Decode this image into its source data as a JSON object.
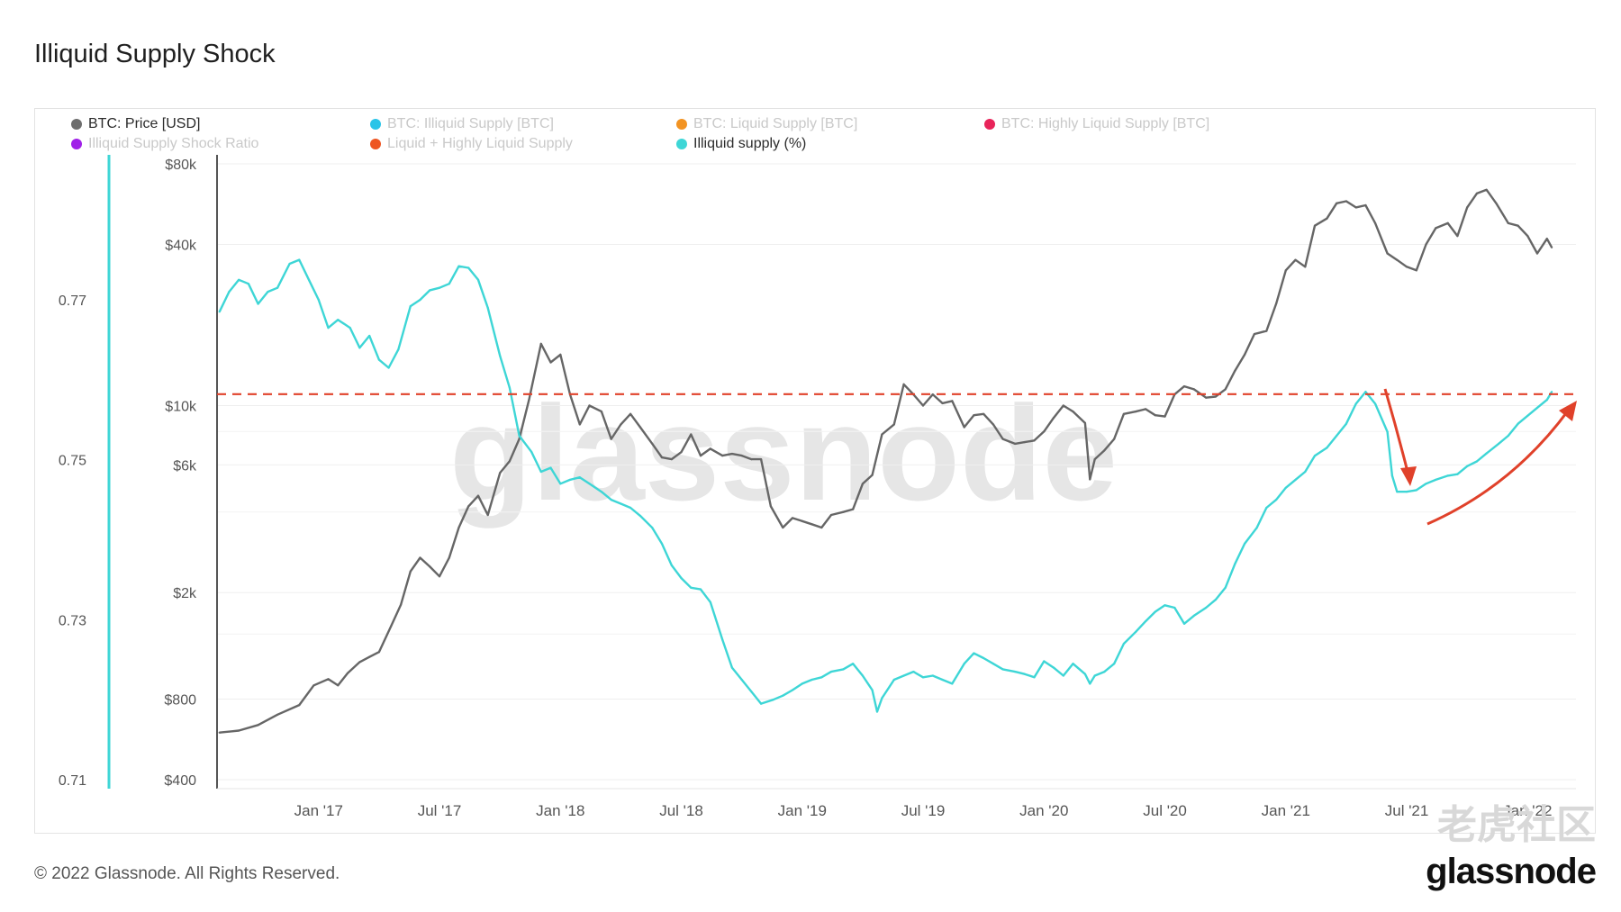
{
  "page": {
    "title": "Illiquid Supply Shock",
    "copyright": "© 2022 Glassnode. All Rights Reserved.",
    "brand": "glassnode",
    "watermark": "glassnode",
    "cn_watermark": "老虎社区"
  },
  "legend": [
    {
      "label": "BTC: Price [USD]",
      "color": "#6e6e6e",
      "active": true
    },
    {
      "label": "BTC: Illiquid Supply [BTC]",
      "color": "#29c4e8",
      "active": false
    },
    {
      "label": "BTC: Liquid Supply [BTC]",
      "color": "#f29322",
      "active": false
    },
    {
      "label": "BTC: Highly Liquid Supply [BTC]",
      "color": "#e8245a",
      "active": false
    },
    {
      "label": "Illiquid Supply Shock Ratio",
      "color": "#a020e8",
      "active": false
    },
    {
      "label": "Liquid + Highly Liquid Supply",
      "color": "#ee5522",
      "active": false
    },
    {
      "label": "Illiquid supply (%)",
      "color": "#3ed6d6",
      "active": true
    }
  ],
  "chart_data": {
    "type": "line",
    "title": "Illiquid Supply Shock",
    "x_ticks": [
      "Jan '17",
      "Jul '17",
      "Jan '18",
      "Jul '18",
      "Jan '19",
      "Jul '19",
      "Jan '20",
      "Jul '20",
      "Jan '21",
      "Jul '21",
      "Jan '22"
    ],
    "y_left_ticks": [
      "$80k",
      "$40k",
      "$10k",
      "$6k",
      "$2k",
      "$800",
      "$400"
    ],
    "y_left_scale": "log",
    "y_left_range": [
      400,
      80000
    ],
    "y_right_ticks": [
      "0.77",
      "0.75",
      "0.73",
      "0.71"
    ],
    "y_right_range": [
      0.71,
      0.787
    ],
    "x_range": [
      2016.58,
      2022.2
    ],
    "series": [
      {
        "name": "BTC: Price [USD]",
        "color": "#666666",
        "axis": "left",
        "points": [
          [
            2016.59,
            600
          ],
          [
            2016.67,
            610
          ],
          [
            2016.75,
            640
          ],
          [
            2016.83,
            700
          ],
          [
            2016.92,
            760
          ],
          [
            2016.98,
            900
          ],
          [
            2017.04,
            950
          ],
          [
            2017.08,
            900
          ],
          [
            2017.12,
            1000
          ],
          [
            2017.17,
            1100
          ],
          [
            2017.21,
            1150
          ],
          [
            2017.25,
            1200
          ],
          [
            2017.3,
            1500
          ],
          [
            2017.34,
            1800
          ],
          [
            2017.38,
            2400
          ],
          [
            2017.42,
            2700
          ],
          [
            2017.46,
            2500
          ],
          [
            2017.5,
            2300
          ],
          [
            2017.54,
            2700
          ],
          [
            2017.58,
            3500
          ],
          [
            2017.62,
            4200
          ],
          [
            2017.66,
            4600
          ],
          [
            2017.7,
            3900
          ],
          [
            2017.75,
            5600
          ],
          [
            2017.79,
            6200
          ],
          [
            2017.83,
            7500
          ],
          [
            2017.87,
            10500
          ],
          [
            2017.92,
            17000
          ],
          [
            2017.96,
            14500
          ],
          [
            2018.0,
            15500
          ],
          [
            2018.04,
            11000
          ],
          [
            2018.08,
            8500
          ],
          [
            2018.12,
            10000
          ],
          [
            2018.17,
            9500
          ],
          [
            2018.21,
            7500
          ],
          [
            2018.25,
            8500
          ],
          [
            2018.29,
            9300
          ],
          [
            2018.33,
            8300
          ],
          [
            2018.38,
            7200
          ],
          [
            2018.42,
            6400
          ],
          [
            2018.46,
            6300
          ],
          [
            2018.5,
            6700
          ],
          [
            2018.54,
            7800
          ],
          [
            2018.58,
            6500
          ],
          [
            2018.62,
            6900
          ],
          [
            2018.67,
            6500
          ],
          [
            2018.71,
            6600
          ],
          [
            2018.75,
            6500
          ],
          [
            2018.79,
            6300
          ],
          [
            2018.83,
            6300
          ],
          [
            2018.87,
            4200
          ],
          [
            2018.92,
            3500
          ],
          [
            2018.96,
            3800
          ],
          [
            2019.0,
            3700
          ],
          [
            2019.04,
            3600
          ],
          [
            2019.08,
            3500
          ],
          [
            2019.12,
            3900
          ],
          [
            2019.17,
            4000
          ],
          [
            2019.21,
            4100
          ],
          [
            2019.25,
            5100
          ],
          [
            2019.29,
            5500
          ],
          [
            2019.33,
            7800
          ],
          [
            2019.38,
            8500
          ],
          [
            2019.42,
            12000
          ],
          [
            2019.46,
            11000
          ],
          [
            2019.5,
            10000
          ],
          [
            2019.54,
            11000
          ],
          [
            2019.58,
            10200
          ],
          [
            2019.62,
            10400
          ],
          [
            2019.67,
            8300
          ],
          [
            2019.71,
            9200
          ],
          [
            2019.75,
            9300
          ],
          [
            2019.79,
            8500
          ],
          [
            2019.83,
            7500
          ],
          [
            2019.88,
            7200
          ],
          [
            2019.92,
            7300
          ],
          [
            2019.96,
            7400
          ],
          [
            2020.0,
            8000
          ],
          [
            2020.04,
            9000
          ],
          [
            2020.08,
            10000
          ],
          [
            2020.12,
            9500
          ],
          [
            2020.17,
            8600
          ],
          [
            2020.19,
            5300
          ],
          [
            2020.21,
            6300
          ],
          [
            2020.25,
            6800
          ],
          [
            2020.29,
            7500
          ],
          [
            2020.33,
            9300
          ],
          [
            2020.38,
            9500
          ],
          [
            2020.42,
            9700
          ],
          [
            2020.46,
            9200
          ],
          [
            2020.5,
            9100
          ],
          [
            2020.54,
            11000
          ],
          [
            2020.58,
            11800
          ],
          [
            2020.62,
            11500
          ],
          [
            2020.67,
            10700
          ],
          [
            2020.71,
            10800
          ],
          [
            2020.75,
            11500
          ],
          [
            2020.79,
            13500
          ],
          [
            2020.83,
            15500
          ],
          [
            2020.87,
            18500
          ],
          [
            2020.92,
            19000
          ],
          [
            2020.96,
            24000
          ],
          [
            2021.0,
            32000
          ],
          [
            2021.04,
            35000
          ],
          [
            2021.08,
            33000
          ],
          [
            2021.12,
            47000
          ],
          [
            2021.17,
            50000
          ],
          [
            2021.21,
            57000
          ],
          [
            2021.25,
            58000
          ],
          [
            2021.29,
            55000
          ],
          [
            2021.33,
            56000
          ],
          [
            2021.37,
            48000
          ],
          [
            2021.42,
            37000
          ],
          [
            2021.46,
            35000
          ],
          [
            2021.5,
            33000
          ],
          [
            2021.54,
            32000
          ],
          [
            2021.58,
            40000
          ],
          [
            2021.62,
            46000
          ],
          [
            2021.67,
            48000
          ],
          [
            2021.71,
            43000
          ],
          [
            2021.75,
            55000
          ],
          [
            2021.79,
            62000
          ],
          [
            2021.83,
            64000
          ],
          [
            2021.87,
            57000
          ],
          [
            2021.92,
            48000
          ],
          [
            2021.96,
            47000
          ],
          [
            2022.0,
            43000
          ],
          [
            2022.04,
            37000
          ],
          [
            2022.08,
            42000
          ],
          [
            2022.1,
            39000
          ]
        ]
      },
      {
        "name": "Illiquid supply (%)",
        "color": "#3ed6d6",
        "axis": "right",
        "points": [
          [
            2016.59,
            0.7685
          ],
          [
            2016.63,
            0.771
          ],
          [
            2016.67,
            0.7725
          ],
          [
            2016.71,
            0.772
          ],
          [
            2016.75,
            0.7695
          ],
          [
            2016.79,
            0.771
          ],
          [
            2016.83,
            0.7715
          ],
          [
            2016.88,
            0.7745
          ],
          [
            2016.92,
            0.775
          ],
          [
            2016.96,
            0.7725
          ],
          [
            2017.0,
            0.77
          ],
          [
            2017.04,
            0.7665
          ],
          [
            2017.08,
            0.7675
          ],
          [
            2017.13,
            0.7665
          ],
          [
            2017.17,
            0.764
          ],
          [
            2017.21,
            0.7655
          ],
          [
            2017.25,
            0.7625
          ],
          [
            2017.29,
            0.7615
          ],
          [
            2017.33,
            0.7638
          ],
          [
            2017.38,
            0.7692
          ],
          [
            2017.42,
            0.77
          ],
          [
            2017.46,
            0.7712
          ],
          [
            2017.5,
            0.7715
          ],
          [
            2017.54,
            0.772
          ],
          [
            2017.58,
            0.7742
          ],
          [
            2017.62,
            0.774
          ],
          [
            2017.66,
            0.7725
          ],
          [
            2017.7,
            0.769
          ],
          [
            2017.75,
            0.763
          ],
          [
            2017.79,
            0.759
          ],
          [
            2017.83,
            0.753
          ],
          [
            2017.88,
            0.751
          ],
          [
            2017.92,
            0.7485
          ],
          [
            2017.96,
            0.749
          ],
          [
            2018.0,
            0.747
          ],
          [
            2018.04,
            0.7475
          ],
          [
            2018.08,
            0.7478
          ],
          [
            2018.12,
            0.747
          ],
          [
            2018.17,
            0.746
          ],
          [
            2018.21,
            0.745
          ],
          [
            2018.25,
            0.7445
          ],
          [
            2018.29,
            0.744
          ],
          [
            2018.33,
            0.743
          ],
          [
            2018.38,
            0.7415
          ],
          [
            2018.42,
            0.7395
          ],
          [
            2018.46,
            0.7368
          ],
          [
            2018.5,
            0.7352
          ],
          [
            2018.54,
            0.734
          ],
          [
            2018.58,
            0.7338
          ],
          [
            2018.62,
            0.7322
          ],
          [
            2018.67,
            0.7275
          ],
          [
            2018.71,
            0.724
          ],
          [
            2018.75,
            0.7225
          ],
          [
            2018.79,
            0.721
          ],
          [
            2018.83,
            0.7195
          ],
          [
            2018.88,
            0.72
          ],
          [
            2018.92,
            0.7205
          ],
          [
            2018.96,
            0.7212
          ],
          [
            2019.0,
            0.722
          ],
          [
            2019.04,
            0.7225
          ],
          [
            2019.08,
            0.7228
          ],
          [
            2019.12,
            0.7235
          ],
          [
            2019.17,
            0.7238
          ],
          [
            2019.21,
            0.7245
          ],
          [
            2019.25,
            0.723
          ],
          [
            2019.29,
            0.7212
          ],
          [
            2019.31,
            0.7185
          ],
          [
            2019.33,
            0.7202
          ],
          [
            2019.38,
            0.7225
          ],
          [
            2019.42,
            0.723
          ],
          [
            2019.46,
            0.7235
          ],
          [
            2019.5,
            0.7228
          ],
          [
            2019.54,
            0.723
          ],
          [
            2019.58,
            0.7225
          ],
          [
            2019.62,
            0.722
          ],
          [
            2019.67,
            0.7245
          ],
          [
            2019.71,
            0.7258
          ],
          [
            2019.75,
            0.7252
          ],
          [
            2019.79,
            0.7245
          ],
          [
            2019.83,
            0.7238
          ],
          [
            2019.88,
            0.7235
          ],
          [
            2019.92,
            0.7232
          ],
          [
            2019.96,
            0.7228
          ],
          [
            2020.0,
            0.7248
          ],
          [
            2020.04,
            0.724
          ],
          [
            2020.08,
            0.723
          ],
          [
            2020.12,
            0.7245
          ],
          [
            2020.17,
            0.7232
          ],
          [
            2020.19,
            0.722
          ],
          [
            2020.21,
            0.723
          ],
          [
            2020.25,
            0.7235
          ],
          [
            2020.29,
            0.7245
          ],
          [
            2020.33,
            0.727
          ],
          [
            2020.38,
            0.7285
          ],
          [
            2020.42,
            0.7298
          ],
          [
            2020.46,
            0.731
          ],
          [
            2020.5,
            0.7318
          ],
          [
            2020.54,
            0.7315
          ],
          [
            2020.58,
            0.7295
          ],
          [
            2020.62,
            0.7305
          ],
          [
            2020.67,
            0.7315
          ],
          [
            2020.71,
            0.7325
          ],
          [
            2020.75,
            0.734
          ],
          [
            2020.79,
            0.737
          ],
          [
            2020.83,
            0.7395
          ],
          [
            2020.88,
            0.7415
          ],
          [
            2020.92,
            0.744
          ],
          [
            2020.96,
            0.745
          ],
          [
            2021.0,
            0.7465
          ],
          [
            2021.04,
            0.7475
          ],
          [
            2021.08,
            0.7485
          ],
          [
            2021.12,
            0.7505
          ],
          [
            2021.17,
            0.7515
          ],
          [
            2021.21,
            0.753
          ],
          [
            2021.25,
            0.7545
          ],
          [
            2021.29,
            0.757
          ],
          [
            2021.33,
            0.7585
          ],
          [
            2021.37,
            0.757
          ],
          [
            2021.42,
            0.7535
          ],
          [
            2021.44,
            0.748
          ],
          [
            2021.46,
            0.746
          ],
          [
            2021.5,
            0.746
          ],
          [
            2021.54,
            0.7462
          ],
          [
            2021.58,
            0.747
          ],
          [
            2021.62,
            0.7475
          ],
          [
            2021.67,
            0.748
          ],
          [
            2021.71,
            0.7482
          ],
          [
            2021.75,
            0.7492
          ],
          [
            2021.79,
            0.7498
          ],
          [
            2021.83,
            0.7508
          ],
          [
            2021.88,
            0.752
          ],
          [
            2021.92,
            0.753
          ],
          [
            2021.96,
            0.7545
          ],
          [
            2022.0,
            0.7555
          ],
          [
            2022.04,
            0.7565
          ],
          [
            2022.08,
            0.7575
          ],
          [
            2022.1,
            0.7585
          ]
        ]
      }
    ],
    "annotations": [
      {
        "type": "reference-line",
        "label": "",
        "color": "#e0412a",
        "axis": "right",
        "value": 0.7582
      },
      {
        "type": "arrow-down",
        "color": "#e0412a"
      },
      {
        "type": "arrow-up-curve",
        "color": "#e0412a"
      }
    ],
    "grid": true,
    "legend_position": "top"
  }
}
